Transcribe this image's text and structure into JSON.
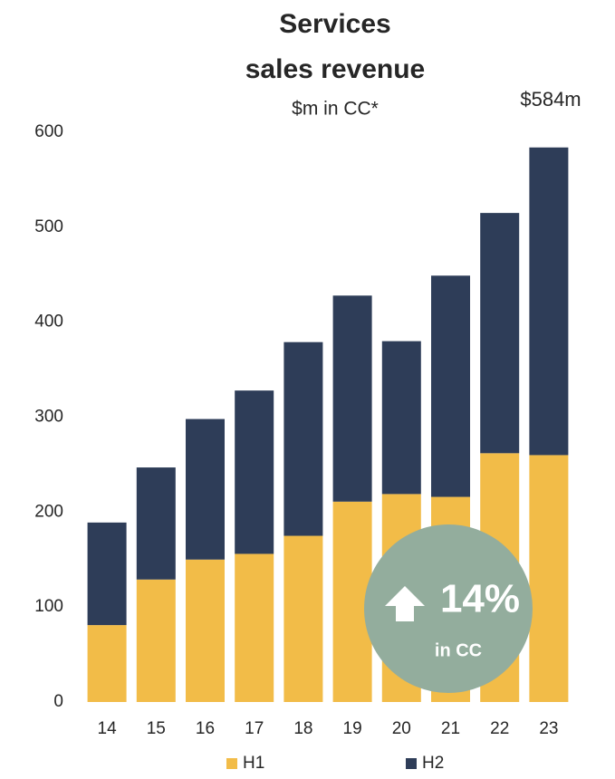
{
  "chart_data": {
    "type": "bar",
    "stacked": true,
    "title": [
      "Services",
      "sales revenue"
    ],
    "subtitle": "$m in CC*",
    "categories": [
      "14",
      "15",
      "16",
      "17",
      "18",
      "19",
      "20",
      "21",
      "22",
      "23"
    ],
    "series": [
      {
        "name": "H1",
        "color": "#f2bc48",
        "values": [
          81,
          129,
          150,
          156,
          175,
          211,
          219,
          216,
          262,
          260
        ]
      },
      {
        "name": "H2",
        "color": "#2e3d58",
        "values": [
          108,
          118,
          148,
          172,
          204,
          217,
          161,
          233,
          253,
          324
        ]
      }
    ],
    "ylim": [
      0,
      600
    ],
    "yticks": [
      0,
      100,
      200,
      300,
      400,
      500,
      600
    ],
    "grid": false,
    "annotations": {
      "total": "$584m",
      "growth": "14%",
      "growth_note": "in CC"
    }
  }
}
